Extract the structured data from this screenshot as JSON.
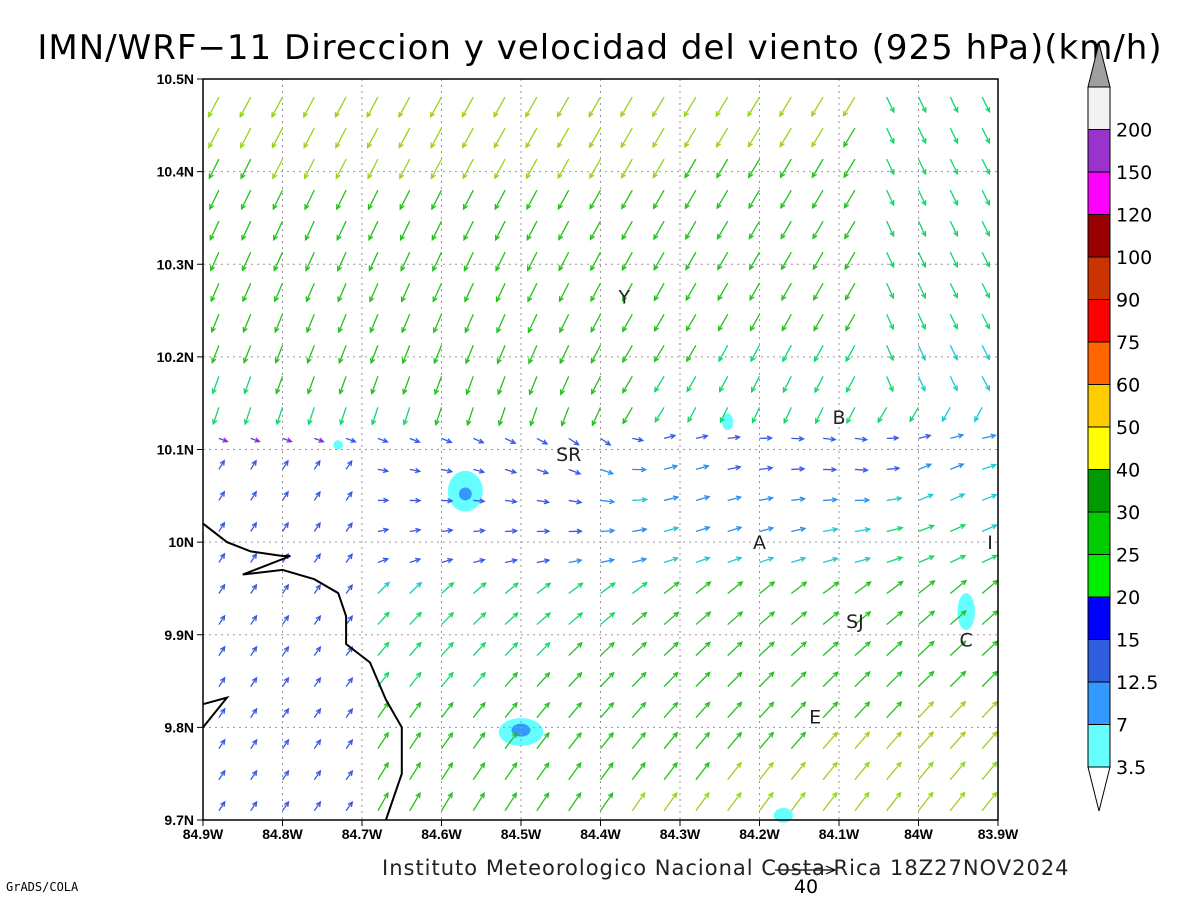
{
  "title": "IMN/WRF−11 Direccion y velocidad del viento (925 hPa)(km/h)",
  "footer": "Instituto Meteorologico Nacional Costa Rica  18Z27NOV2024",
  "credit": "GrADS/COLA",
  "ref_vector": {
    "value": 40,
    "label": "40"
  },
  "axes": {
    "lon": {
      "min": -84.9,
      "max": -83.9,
      "ticks": [
        {
          "v": -84.9,
          "label": "84.9W"
        },
        {
          "v": -84.8,
          "label": "84.8W"
        },
        {
          "v": -84.7,
          "label": "84.7W"
        },
        {
          "v": -84.6,
          "label": "84.6W"
        },
        {
          "v": -84.5,
          "label": "84.5W"
        },
        {
          "v": -84.4,
          "label": "84.4W"
        },
        {
          "v": -84.3,
          "label": "84.3W"
        },
        {
          "v": -84.2,
          "label": "84.2W"
        },
        {
          "v": -84.1,
          "label": "84.1W"
        },
        {
          "v": -84.0,
          "label": "84W"
        },
        {
          "v": -83.9,
          "label": "83.9W"
        }
      ]
    },
    "lat": {
      "min": 9.7,
      "max": 10.5,
      "ticks": [
        {
          "v": 10.5,
          "label": "10.5N"
        },
        {
          "v": 10.4,
          "label": "10.4N"
        },
        {
          "v": 10.3,
          "label": "10.3N"
        },
        {
          "v": 10.2,
          "label": "10.2N"
        },
        {
          "v": 10.1,
          "label": "10.1N"
        },
        {
          "v": 10.0,
          "label": "10N"
        },
        {
          "v": 9.9,
          "label": "9.9N"
        },
        {
          "v": 9.8,
          "label": "9.8N"
        },
        {
          "v": 9.7,
          "label": "9.7N"
        }
      ]
    }
  },
  "colorbar": {
    "levels": [
      {
        "label": "3.5",
        "color": "#66ffff"
      },
      {
        "label": "7",
        "color": "#3399ff"
      },
      {
        "label": "12.5",
        "color": "#2f5fe0"
      },
      {
        "label": "15",
        "color": "#0000ff"
      },
      {
        "label": "20",
        "color": "#00ee00"
      },
      {
        "label": "25",
        "color": "#00cc00"
      },
      {
        "label": "30",
        "color": "#009900"
      },
      {
        "label": "40",
        "color": "#ffff00"
      },
      {
        "label": "50",
        "color": "#ffcc00"
      },
      {
        "label": "60",
        "color": "#ff6600"
      },
      {
        "label": "75",
        "color": "#ff0000"
      },
      {
        "label": "90",
        "color": "#cc3300"
      },
      {
        "label": "100",
        "color": "#990000"
      },
      {
        "label": "120",
        "color": "#ff00ff"
      },
      {
        "label": "150",
        "color": "#9933cc"
      },
      {
        "label": "200",
        "color": "#f2f2f2"
      }
    ],
    "top_arrow_color": "#a0a0a0",
    "bottom_arrow_color": "#ffffff"
  },
  "cities": [
    {
      "label": "Y",
      "lon": -84.37,
      "lat": 10.265
    },
    {
      "label": "SR",
      "lon": -84.44,
      "lat": 10.095
    },
    {
      "label": "B",
      "lon": -84.1,
      "lat": 10.135
    },
    {
      "label": "A",
      "lon": -84.2,
      "lat": 10.0
    },
    {
      "label": "I",
      "lon": -83.91,
      "lat": 10.0
    },
    {
      "label": "SJ",
      "lon": -84.08,
      "lat": 9.915
    },
    {
      "label": "C",
      "lon": -83.94,
      "lat": 9.895
    },
    {
      "label": "E",
      "lon": -84.13,
      "lat": 9.812
    }
  ],
  "coast": [
    {
      "lon": -84.9,
      "lat": 10.02
    },
    {
      "lon": -84.87,
      "lat": 10.0
    },
    {
      "lon": -84.84,
      "lat": 9.99
    },
    {
      "lon": -84.8,
      "lat": 9.985
    },
    {
      "lon": -84.79,
      "lat": 9.985
    },
    {
      "lon": -84.82,
      "lat": 9.975
    },
    {
      "lon": -84.85,
      "lat": 9.965
    },
    {
      "lon": -84.8,
      "lat": 9.97
    },
    {
      "lon": -84.76,
      "lat": 9.96
    },
    {
      "lon": -84.73,
      "lat": 9.945
    },
    {
      "lon": -84.72,
      "lat": 9.92
    },
    {
      "lon": -84.72,
      "lat": 9.89
    },
    {
      "lon": -84.69,
      "lat": 9.87
    },
    {
      "lon": -84.67,
      "lat": 9.83
    },
    {
      "lon": -84.65,
      "lat": 9.8
    },
    {
      "lon": -84.65,
      "lat": 9.75
    },
    {
      "lon": -84.67,
      "lat": 9.7
    }
  ],
  "coast2": [
    {
      "lon": -84.9,
      "lat": 9.825
    },
    {
      "lon": -84.87,
      "lat": 9.832
    },
    {
      "lon": -84.9,
      "lat": 9.8
    }
  ],
  "shaded_blobs": [
    {
      "lon": -84.57,
      "lat": 10.055,
      "rx": 0.022,
      "ry": 0.022,
      "level": "3.5"
    },
    {
      "lon": -84.57,
      "lat": 10.052,
      "rx": 0.008,
      "ry": 0.007,
      "level": "7"
    },
    {
      "lon": -84.5,
      "lat": 9.795,
      "rx": 0.028,
      "ry": 0.015,
      "level": "3.5"
    },
    {
      "lon": -84.5,
      "lat": 9.797,
      "rx": 0.012,
      "ry": 0.007,
      "level": "7"
    },
    {
      "lon": -83.94,
      "lat": 9.925,
      "rx": 0.011,
      "ry": 0.02,
      "level": "3.5"
    },
    {
      "lon": -84.24,
      "lat": 10.13,
      "rx": 0.007,
      "ry": 0.009,
      "level": "3.5"
    },
    {
      "lon": -84.73,
      "lat": 10.105,
      "rx": 0.006,
      "ry": 0.005,
      "level": "3.5"
    },
    {
      "lon": -84.17,
      "lat": 9.705,
      "rx": 0.012,
      "ry": 0.008,
      "level": "3.5"
    }
  ],
  "wind_centers": [
    {
      "lon": -84.36,
      "lat": 10.1,
      "strength": 0.5
    },
    {
      "lon": -84.03,
      "lat": 10.06,
      "strength": 0.4
    }
  ]
}
